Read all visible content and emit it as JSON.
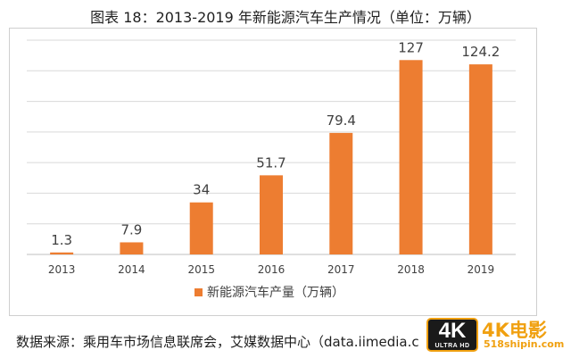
{
  "title": "图表 18：2013-2019 年新能源汽车生产情况（单位：万辆）",
  "source": "数据来源：乘用车市场信息联席会，艾媒数据中心（data.iimedia.c",
  "watermark": {
    "badge": "4K",
    "badge_sub": "ULTRA HD",
    "text": "4K电影",
    "sub": "518shipin.com"
  },
  "colors": {
    "bar": "#ED7D31",
    "grid": "#d9d9d9",
    "text": "#404040"
  },
  "chart_data": {
    "type": "bar",
    "categories": [
      "2013",
      "2014",
      "2015",
      "2016",
      "2017",
      "2018",
      "2019"
    ],
    "series": [
      {
        "name": "新能源汽车产量（万辆）",
        "values": [
          1.3,
          7.9,
          34,
          51.7,
          79.4,
          127,
          124.2
        ]
      }
    ],
    "value_labels": [
      "1.3",
      "7.9",
      "34",
      "51.7",
      "79.4",
      "127",
      "124.2"
    ],
    "ylim": [
      0,
      140
    ],
    "yticks_step": 20,
    "grid": true,
    "legend": "bottom"
  }
}
